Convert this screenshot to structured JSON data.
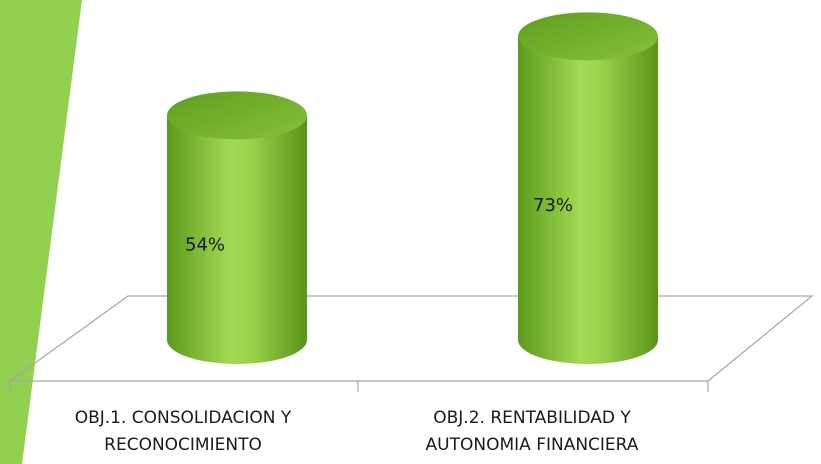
{
  "chart_data": {
    "type": "bar",
    "categories": [
      [
        "OBJ.1. CONSOLIDACION Y",
        "RECONOCIMIENTO"
      ],
      [
        "OBJ.2. RENTABILIDAD Y",
        "AUTONOMIA FINANCIERA"
      ]
    ],
    "values": [
      54,
      73
    ],
    "value_labels": [
      "54%",
      "73%"
    ],
    "color": "#8cc63f"
  }
}
